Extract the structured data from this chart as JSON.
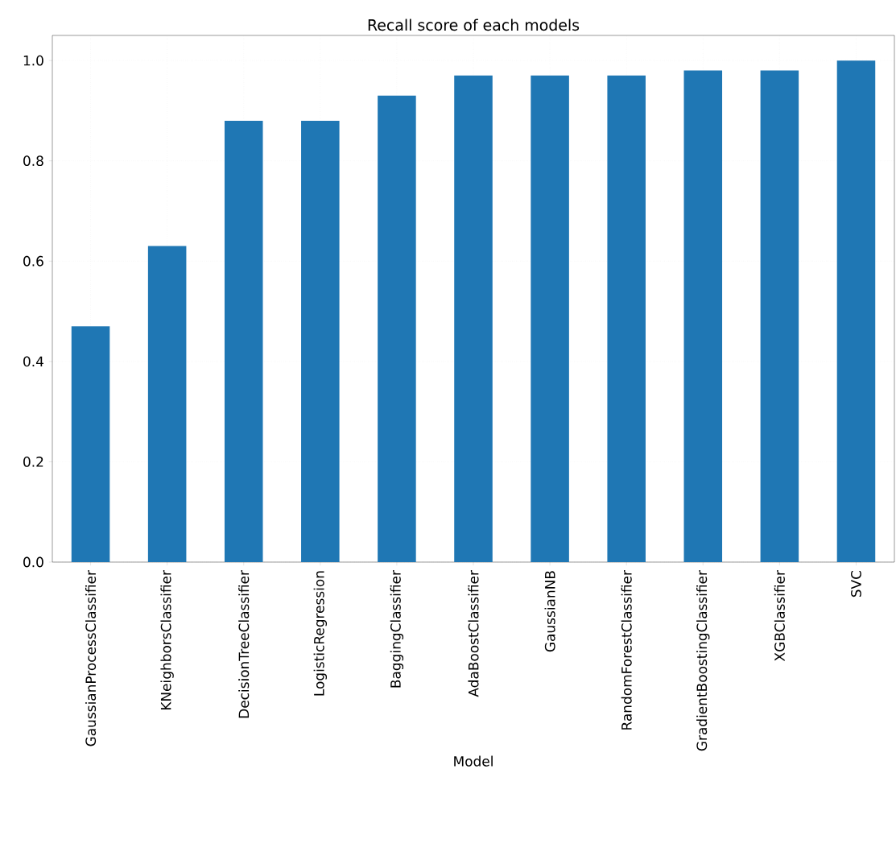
{
  "chart_data": {
    "type": "bar",
    "title": "Recall score of each models",
    "xlabel": "Model",
    "categories": [
      "GaussianProcessClassifier",
      "KNeighborsClassifier",
      "DecisionTreeClassifier",
      "LogisticRegression",
      "BaggingClassifier",
      "AdaBoostClassifier",
      "GaussianNB",
      "RandomForestClassifier",
      "GradientBoostingClassifier",
      "XGBClassifier",
      "SVC"
    ],
    "values": [
      0.47,
      0.63,
      0.88,
      0.88,
      0.93,
      0.97,
      0.97,
      0.97,
      0.98,
      0.98,
      1.0
    ],
    "color": "#1f77b4",
    "ylim": [
      0,
      1.05
    ],
    "yticks": [
      {
        "value": 0,
        "label": "0.0"
      },
      0.2,
      0.4,
      0.6,
      0.8,
      {
        "value": 1,
        "label": "1.0"
      }
    ],
    "grid": true
  }
}
